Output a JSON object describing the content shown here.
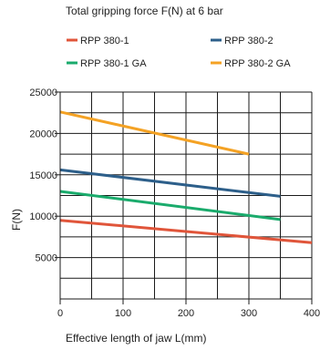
{
  "chart_data": {
    "type": "line",
    "title": "Total gripping force F(N) at 6 bar",
    "xlabel": "Effective length of jaw L(mm)",
    "ylabel": "F(N)",
    "xlim": [
      0,
      400
    ],
    "ylim": [
      0,
      25000
    ],
    "x_ticks": [
      0,
      100,
      200,
      300,
      400
    ],
    "y_ticks": [
      5000,
      10000,
      15000,
      20000,
      25000
    ],
    "grid": true,
    "legend_position": "top",
    "series": [
      {
        "name": "RPP 380-1",
        "color": "#e0553a",
        "x": [
          0,
          400
        ],
        "y": [
          9500,
          6800
        ]
      },
      {
        "name": "RPP 380-2",
        "color": "#2d5f8a",
        "x": [
          0,
          350
        ],
        "y": [
          15600,
          12400
        ]
      },
      {
        "name": "RPP 380-1 GA",
        "color": "#1aab6c",
        "x": [
          0,
          350
        ],
        "y": [
          13000,
          9600
        ]
      },
      {
        "name": "RPP 380-2 GA",
        "color": "#f4a224",
        "x": [
          0,
          300
        ],
        "y": [
          22600,
          17500
        ]
      }
    ]
  }
}
